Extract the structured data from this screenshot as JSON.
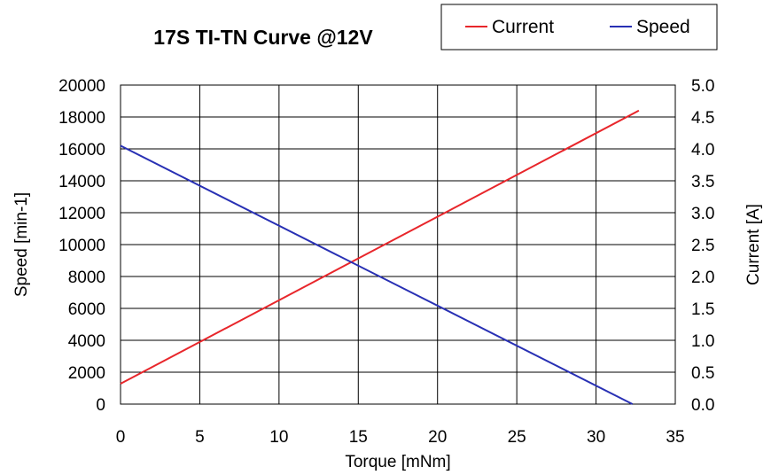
{
  "chart_data": {
    "type": "line",
    "title": "17S TI-TN Curve @12V",
    "xlabel": "Torque [mNm]",
    "ylabel": "Speed [min-1]",
    "y2label": "Current [A]",
    "xlim": [
      0,
      35
    ],
    "ylim": [
      0,
      20000
    ],
    "y2lim": [
      0,
      5.0
    ],
    "xticks": [
      "0",
      "5",
      "10",
      "15",
      "20",
      "25",
      "30",
      "35"
    ],
    "yticks": [
      "0",
      "2000",
      "4000",
      "6000",
      "8000",
      "10000",
      "12000",
      "14000",
      "16000",
      "18000",
      "20000"
    ],
    "y2ticks": [
      "0.0",
      "0.5",
      "1.0",
      "1.5",
      "2.0",
      "2.5",
      "3.0",
      "3.5",
      "4.0",
      "4.5",
      "5.0"
    ],
    "grid": true,
    "legend_position": "top-right",
    "series": [
      {
        "name": "Current",
        "axis": "right",
        "color": "#e8262b",
        "x": [
          0,
          32.7
        ],
        "y": [
          0.32,
          4.6
        ]
      },
      {
        "name": "Speed",
        "axis": "left",
        "color": "#2830b4",
        "x": [
          0,
          32.3
        ],
        "y": [
          16200,
          0
        ]
      }
    ]
  }
}
